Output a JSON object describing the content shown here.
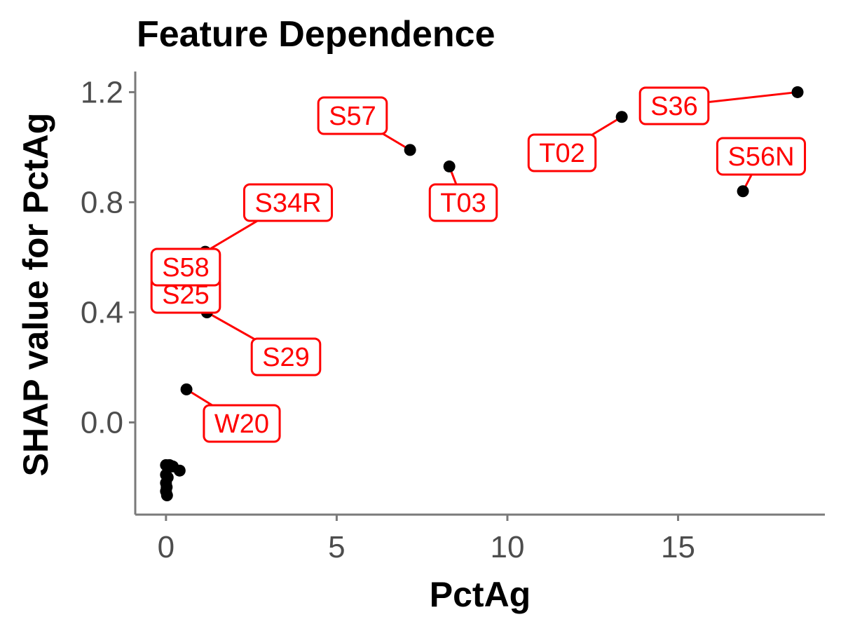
{
  "chart_data": {
    "type": "scatter",
    "title": "Feature Dependence",
    "xlabel": "PctAg",
    "ylabel": "SHAP value for PctAg",
    "xlim": [
      -0.9,
      19.3
    ],
    "ylim": [
      -0.335,
      1.275
    ],
    "xticks": [
      0,
      5,
      10,
      15
    ],
    "xtick_labels": [
      "0",
      "5",
      "10",
      "15"
    ],
    "yticks": [
      0.0,
      0.4,
      0.8,
      1.2
    ],
    "ytick_labels": [
      "0.0",
      "0.4",
      "0.8",
      "1.2"
    ],
    "grid": false,
    "legend": "none",
    "point_color": "#000000",
    "label_color": "#ff0000",
    "points": [
      {
        "x": 18.5,
        "y": 1.2,
        "label": "S36"
      },
      {
        "x": 13.35,
        "y": 1.11,
        "label": "T02"
      },
      {
        "x": 7.15,
        "y": 0.99,
        "label": "S57"
      },
      {
        "x": 8.3,
        "y": 0.93,
        "label": "T03"
      },
      {
        "x": 16.9,
        "y": 0.84,
        "label": "S56N"
      },
      {
        "x": 1.15,
        "y": 0.62,
        "label": "S34R"
      },
      {
        "x": 1.05,
        "y": 0.5,
        "label": "S58"
      },
      {
        "x": 1.0,
        "y": 0.43,
        "label": "S25"
      },
      {
        "x": 1.2,
        "y": 0.4,
        "label": "S29"
      },
      {
        "x": 0.6,
        "y": 0.12,
        "label": "W20"
      },
      {
        "x": 0.0,
        "y": -0.155,
        "label": ""
      },
      {
        "x": 0.1,
        "y": -0.155,
        "label": ""
      },
      {
        "x": 0.2,
        "y": -0.16,
        "label": ""
      },
      {
        "x": 0.4,
        "y": -0.175,
        "label": ""
      },
      {
        "x": 0.0,
        "y": -0.19,
        "label": ""
      },
      {
        "x": 0.05,
        "y": -0.2,
        "label": ""
      },
      {
        "x": 0.0,
        "y": -0.22,
        "label": ""
      },
      {
        "x": 0.02,
        "y": -0.235,
        "label": ""
      },
      {
        "x": 0.0,
        "y": -0.25,
        "label": ""
      },
      {
        "x": 0.03,
        "y": -0.265,
        "label": ""
      }
    ]
  }
}
